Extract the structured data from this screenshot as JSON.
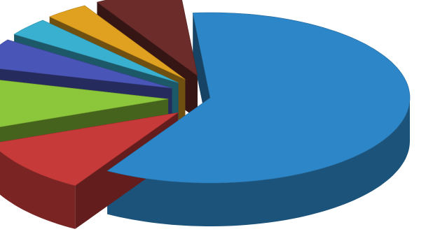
{
  "chart_data": {
    "type": "pie",
    "style": "3d-exploded",
    "title": "",
    "legend": "none",
    "data_labels": "none",
    "slices": [
      {
        "value": 60.0,
        "color": "#2d86c7",
        "exploded": false
      },
      {
        "value": 10.5,
        "color": "#c63a3a",
        "exploded": true
      },
      {
        "value": 10.0,
        "color": "#8cc63a",
        "exploded": true
      },
      {
        "value": 5.5,
        "color": "#4a55b8",
        "exploded": true
      },
      {
        "value": 3.5,
        "color": "#3ab0d0",
        "exploded": true
      },
      {
        "value": 3.5,
        "color": "#e0a020",
        "exploded": true
      },
      {
        "value": 7.0,
        "color": "#6b2c2a",
        "exploded": true
      }
    ]
  }
}
